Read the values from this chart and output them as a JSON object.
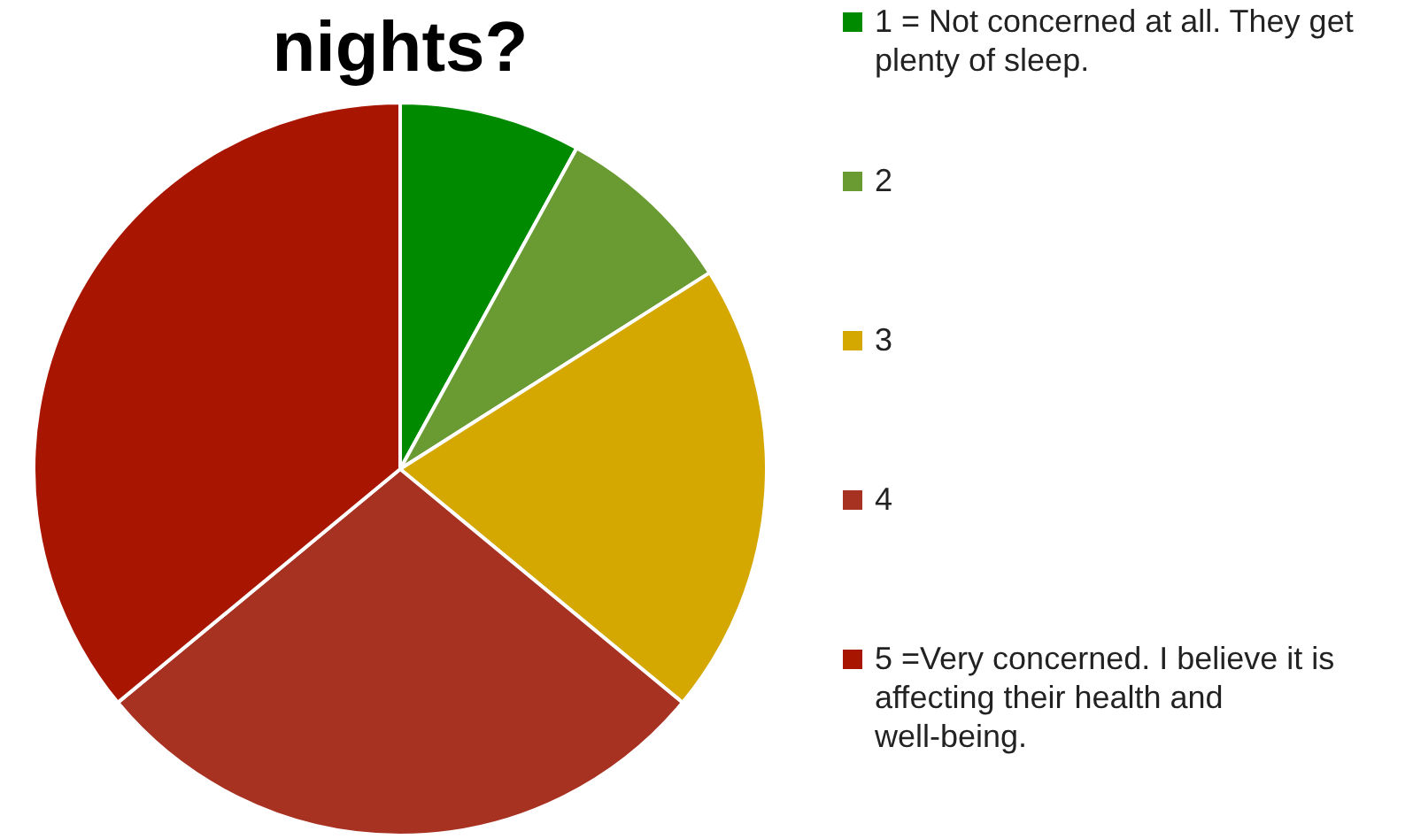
{
  "chart_data": {
    "type": "pie",
    "title": "nights?",
    "legend": "right",
    "categories": [
      "1 = Not concerned at all. They get plenty of sleep.",
      "2",
      "3",
      "4",
      "5 =Very concerned. I believe it is affecting their health and well-being."
    ],
    "values": [
      8,
      8,
      20,
      28,
      36
    ],
    "colors": [
      "#008a00",
      "#6a9a32",
      "#d4a800",
      "#a83222",
      "#a81500"
    ]
  }
}
